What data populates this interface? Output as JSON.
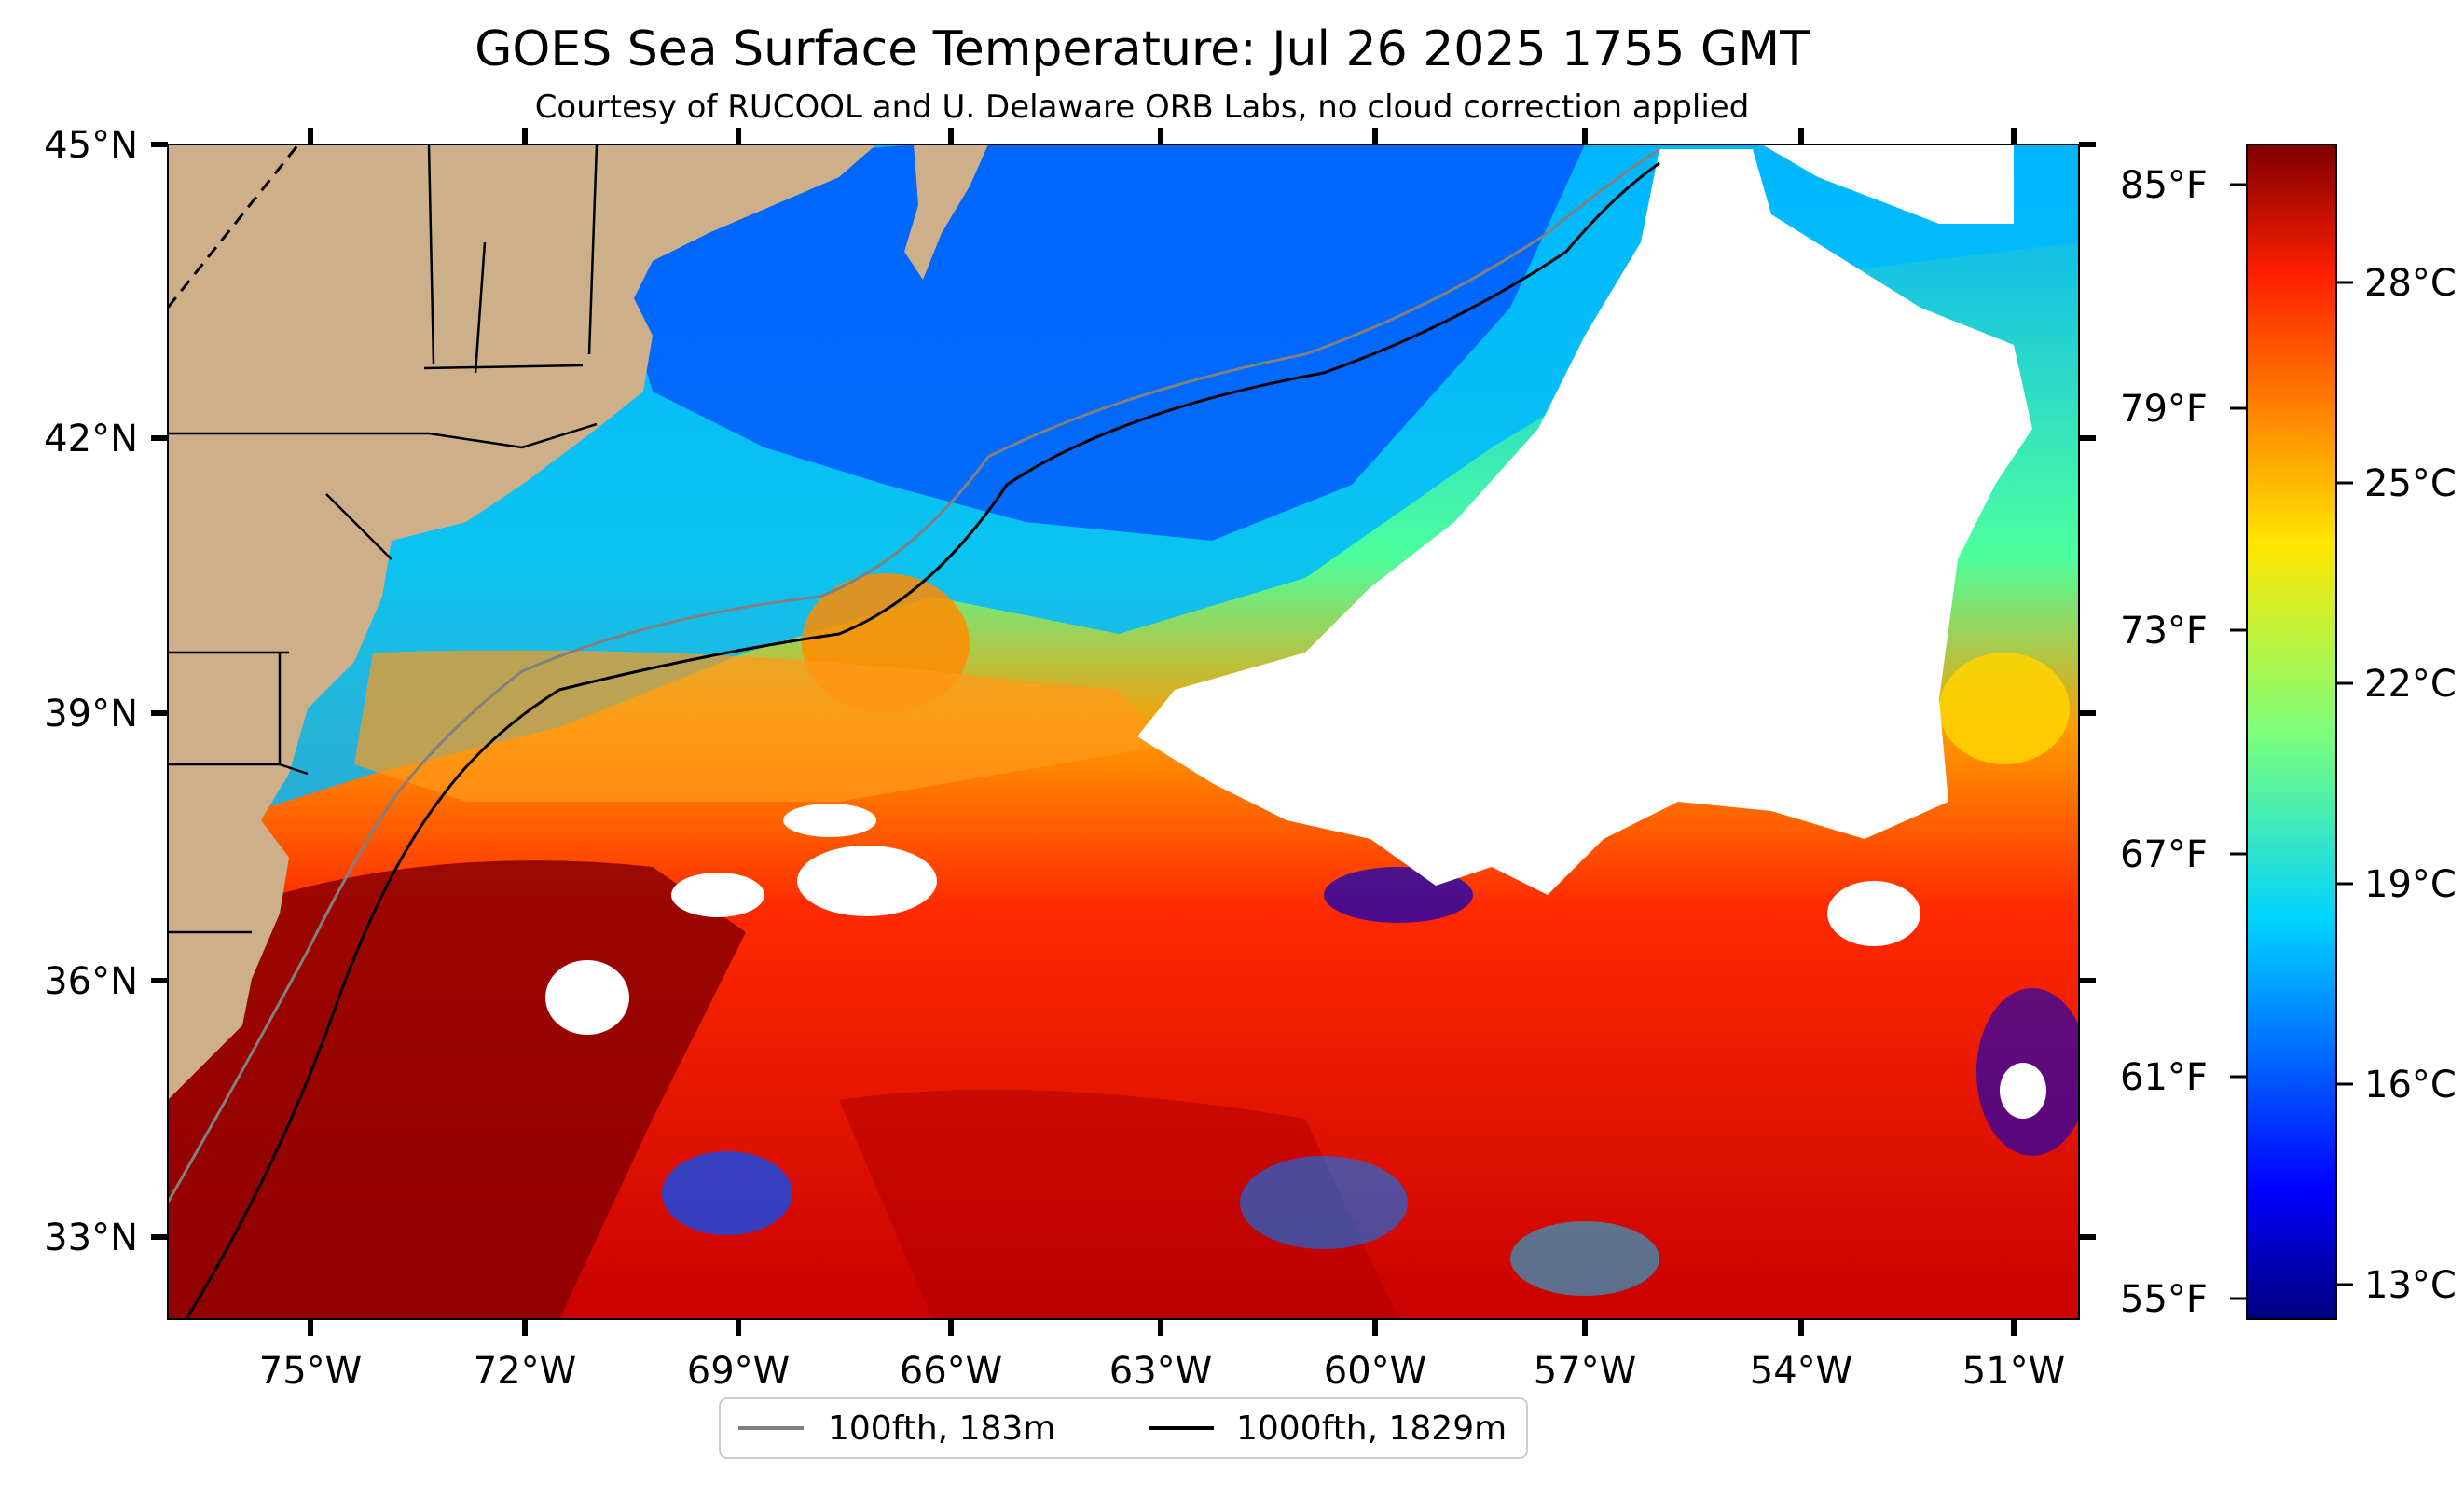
{
  "figure": {
    "title": "GOES Sea Surface Temperature: Jul 26 2025 1755 GMT",
    "subtitle": "Courtesy of RUCOOL and U. Delaware ORB Labs, no cloud correction applied"
  },
  "map": {
    "lon_range": [
      -77.0,
      -49.0
    ],
    "lat_range": [
      32.0,
      45.0
    ],
    "latitude_ticks": [
      "45°N",
      "42°N",
      "39°N",
      "36°N",
      "33°N"
    ],
    "longitude_ticks": [
      "75°W",
      "72°W",
      "69°W",
      "66°W",
      "63°W",
      "60°W",
      "57°W",
      "54°W",
      "51°W"
    ],
    "land_color": "#cdb08a",
    "cloud_mask_color": "#ffffff"
  },
  "colorbar": {
    "colormap": "jet",
    "fahrenheit_ticks": [
      "85°F",
      "79°F",
      "73°F",
      "67°F",
      "61°F",
      "55°F"
    ],
    "celsius_ticks": [
      "28°C",
      "25°C",
      "22°C",
      "19°C",
      "16°C",
      "13°C"
    ],
    "colors": [
      "#00007f",
      "#0000ff",
      "#0080ff",
      "#00ffff",
      "#80ff80",
      "#ffff00",
      "#ff8000",
      "#ff0000",
      "#7f0000"
    ]
  },
  "legend": {
    "items": [
      {
        "label": "100fth, 183m",
        "color": "#808080"
      },
      {
        "label": "1000fth, 1829m",
        "color": "#000000"
      }
    ]
  }
}
